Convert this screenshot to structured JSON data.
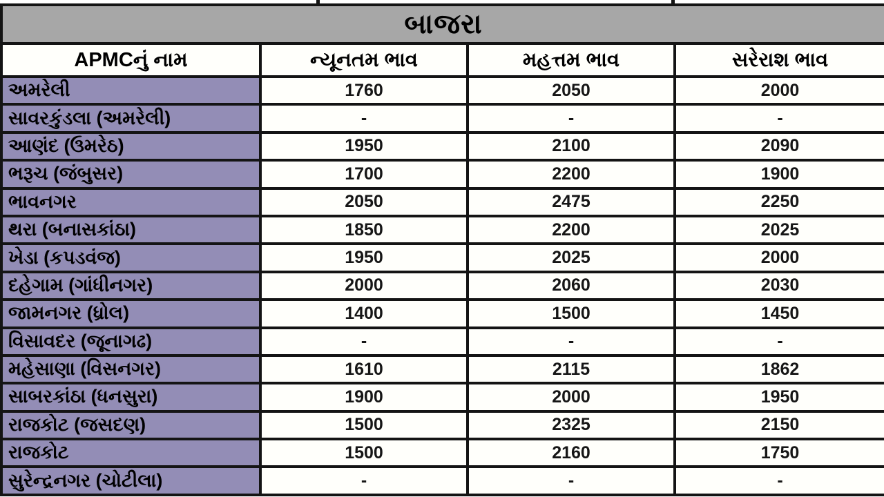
{
  "title": "બાજરા",
  "table": {
    "columns": [
      "APMCનું નામ",
      "ન્યૂનતમ ભાવ",
      "મહત્તમ ભાવ",
      "સરેરાશ ભાવ"
    ],
    "rows": [
      {
        "name": "અમરેલી",
        "min": "1760",
        "max": "2050",
        "avg": "2000"
      },
      {
        "name": "સાવરકુંડલા (અમરેલી)",
        "min": "-",
        "max": "-",
        "avg": "-"
      },
      {
        "name": "આણંદ (ઉમરેઠ)",
        "min": "1950",
        "max": "2100",
        "avg": "2090"
      },
      {
        "name": "ભરૂચ (જંબુસર)",
        "min": "1700",
        "max": "2200",
        "avg": "1900"
      },
      {
        "name": "ભાવનગર",
        "min": "2050",
        "max": "2475",
        "avg": "2250"
      },
      {
        "name": "થરા (બનાસકાંઠા)",
        "min": "1850",
        "max": "2200",
        "avg": "2025"
      },
      {
        "name": "ખેડા (કપડવંજ)",
        "min": "1950",
        "max": "2025",
        "avg": "2000"
      },
      {
        "name": "દહેગામ (ગાંધીનગર)",
        "min": "2000",
        "max": "2060",
        "avg": "2030"
      },
      {
        "name": "જામનગર (ધ્રોલ)",
        "min": "1400",
        "max": "1500",
        "avg": "1450"
      },
      {
        "name": "વિસાવદર (જૂનાગઢ)",
        "min": "-",
        "max": "-",
        "avg": "-"
      },
      {
        "name": "મહેસાણા (વિસનગર)",
        "min": "1610",
        "max": "2115",
        "avg": "1862"
      },
      {
        "name": "સાબરકાંઠા (ધનસુરા)",
        "min": "1900",
        "max": "2000",
        "avg": "1950"
      },
      {
        "name": "રાજકોટ (જસદણ)",
        "min": "1500",
        "max": "2325",
        "avg": "2150"
      },
      {
        "name": "રાજકોટ",
        "min": "1500",
        "max": "2160",
        "avg": "1750"
      },
      {
        "name": "સુરેન્દ્રનગર (ચોટીલા)",
        "min": "-",
        "max": "-",
        "avg": "-"
      }
    ]
  },
  "colors": {
    "title_bg": "#a7a7a7",
    "name_cell_bg": "#938db6",
    "grid_border": "#141414",
    "cell_bg": "#fffffb"
  }
}
